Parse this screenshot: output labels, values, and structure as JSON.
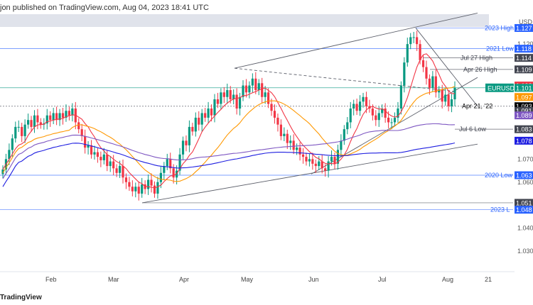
{
  "header": {
    "published": "jon published on TradingView.com, Aug 04, 2023 18:41 UTC"
  },
  "footer": {
    "brand": "TradingView"
  },
  "chart_data": {
    "type": "candlestick",
    "symbol": "EURUSD",
    "currency": "USD",
    "x_ticks": [
      "Feb",
      "Mar",
      "Apr",
      "May",
      "Jun",
      "Jul",
      "Aug",
      "21"
    ],
    "y_ticks": [
      1.12,
      1.07,
      1.06,
      1.04,
      1.03
    ],
    "ylim": [
      1.022,
      1.133
    ],
    "price_tags": [
      {
        "text": "1.127",
        "bg": "#2962ff",
        "fg": "#ffffff",
        "v": 1.127
      },
      {
        "text": "1.118",
        "bg": "#2962ff",
        "fg": "#ffffff",
        "v": 1.118
      },
      {
        "text": "1.114",
        "bg": "#434651",
        "fg": "#ffffff",
        "v": 1.114
      },
      {
        "text": "1.109",
        "bg": "#434651",
        "fg": "#ffffff",
        "v": 1.109
      },
      {
        "text": "1.102",
        "bg": "#f23645",
        "fg": "#ffffff",
        "v": 1.102
      },
      {
        "text": "1.101",
        "bg": "#089981",
        "fg": "#ffffff",
        "v": 1.101
      },
      {
        "text": "1.097",
        "bg": "#ff9800",
        "fg": "#ffffff",
        "v": 1.097
      },
      {
        "text": "1.093",
        "bg": "#000000",
        "fg": "#ffffff",
        "v": 1.093
      },
      {
        "text": "1.091",
        "bg": "#434651",
        "fg": "#ffffff",
        "v": 1.091
      },
      {
        "text": "1.089",
        "bg": "#7e57c2",
        "fg": "#ffffff",
        "v": 1.089
      },
      {
        "text": "1.083",
        "bg": "#434651",
        "fg": "#ffffff",
        "v": 1.083
      },
      {
        "text": "1.078",
        "bg": "#1e1ee0",
        "fg": "#ffffff",
        "v": 1.078
      },
      {
        "text": "1.063",
        "bg": "#2962ff",
        "fg": "#ffffff",
        "v": 1.063
      },
      {
        "text": "1.051",
        "bg": "#434651",
        "fg": "#ffffff",
        "v": 1.051
      },
      {
        "text": "1.048",
        "bg": "#2962ff",
        "fg": "#ffffff",
        "v": 1.048
      }
    ],
    "symbol_tag": {
      "text": "EURUSD",
      "bg": "#089981",
      "fg": "#ffffff",
      "v": 1.101
    },
    "annotations": [
      {
        "text": "2023 High",
        "v": 1.127,
        "color": "#2962ff"
      },
      {
        "text": "2021 Low",
        "v": 1.118,
        "color": "#2962ff"
      },
      {
        "text": "Jul 27 High",
        "v": 1.114,
        "color": "#434651"
      },
      {
        "text": "Apr 26 High",
        "v": 1.109,
        "color": "#434651"
      },
      {
        "text": "Apr 21, '22",
        "v": 1.093,
        "color": "#000000"
      },
      {
        "text": "Jul 6 Low",
        "v": 1.083,
        "color": "#434651"
      },
      {
        "text": "2020 Low",
        "v": 1.063,
        "color": "#2962ff"
      },
      {
        "text": "2023 L",
        "v": 1.048,
        "color": "#2962ff"
      }
    ],
    "candle_closes": [
      1.0655,
      1.07,
      1.074,
      1.079,
      1.084,
      1.084,
      1.08,
      1.085,
      1.087,
      1.084,
      1.089,
      1.086,
      1.085,
      1.0855,
      1.089,
      1.087,
      1.09,
      1.087,
      1.09,
      1.088,
      1.091,
      1.089,
      1.092,
      1.086,
      1.083,
      1.08,
      1.075,
      1.076,
      1.072,
      1.073,
      1.071,
      1.0695,
      1.072,
      1.067,
      1.069,
      1.066,
      1.064,
      1.067,
      1.062,
      1.06,
      1.058,
      1.056,
      1.058,
      1.055,
      1.059,
      1.057,
      1.061,
      1.0585,
      1.055,
      1.06,
      1.064,
      1.067,
      1.07,
      1.066,
      1.062,
      1.065,
      1.072,
      1.078,
      1.076,
      1.084,
      1.082,
      1.088,
      1.085,
      1.09,
      1.088,
      1.092,
      1.089,
      1.096,
      1.094,
      1.099,
      1.097,
      1.1,
      1.096,
      1.098,
      1.092,
      1.097,
      1.102,
      1.099,
      1.102,
      1.105,
      1.1,
      1.103,
      1.097,
      1.099,
      1.094,
      1.091,
      1.088,
      1.085,
      1.08,
      1.081,
      1.077,
      1.078,
      1.074,
      1.075,
      1.072,
      1.071,
      1.069,
      1.07,
      1.068,
      1.067,
      1.069,
      1.066,
      1.065,
      1.069,
      1.071,
      1.068,
      1.074,
      1.078,
      1.083,
      1.086,
      1.092,
      1.094,
      1.091,
      1.095,
      1.097,
      1.093,
      1.092,
      1.089,
      1.087,
      1.09,
      1.092,
      1.088,
      1.086,
      1.086,
      1.088,
      1.092,
      1.102,
      1.112,
      1.12,
      1.123,
      1.123,
      1.12,
      1.113,
      1.11,
      1.105,
      1.101,
      1.106,
      1.099,
      1.1,
      1.095,
      1.098,
      1.093,
      1.096,
      1.101
    ]
  }
}
